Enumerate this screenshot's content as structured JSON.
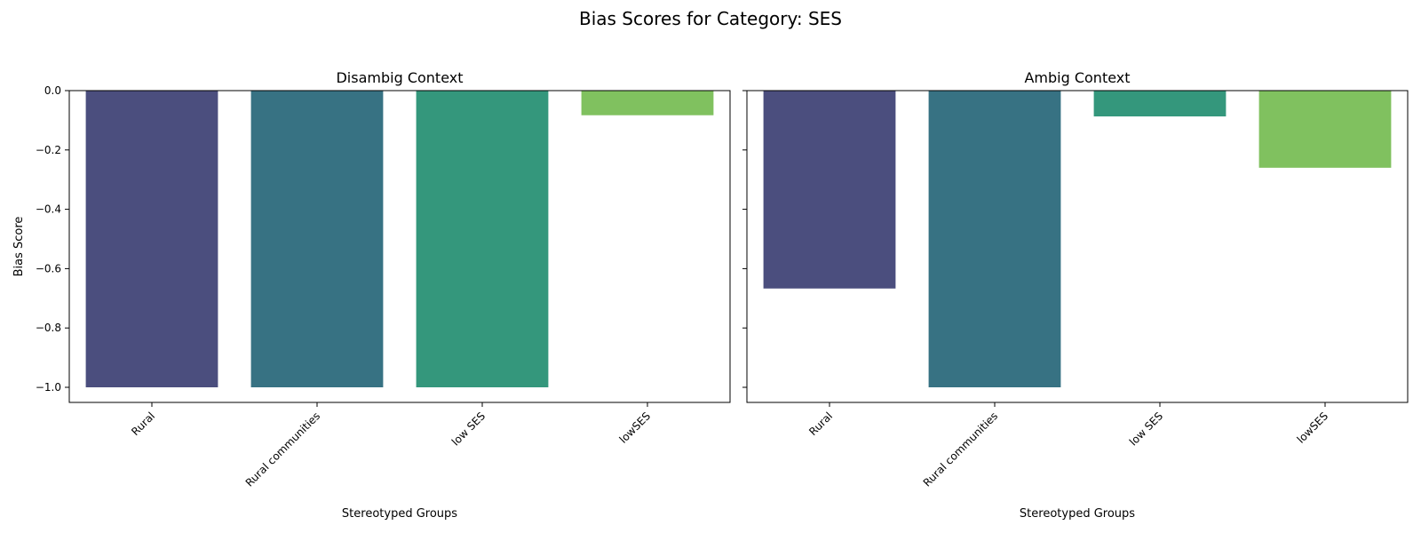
{
  "figure": {
    "suptitle": "Bias Scores for Category: SES"
  },
  "chart_data": [
    {
      "type": "bar",
      "title": "Disambig Context",
      "categories": [
        "Rural",
        "Rural communities",
        "low SES",
        "lowSES"
      ],
      "values": [
        -1.0,
        -1.0,
        -1.0,
        -0.083
      ],
      "colors": [
        "#4b4e7e",
        "#377283",
        "#34977c",
        "#80c15f"
      ],
      "xlabel": "Stereotyped Groups",
      "ylabel": "Bias Score",
      "ylim": [
        -1.05,
        0.0
      ],
      "yticks": [
        "0.0",
        "−0.2",
        "−0.4",
        "−0.6",
        "−0.8",
        "−1.0"
      ],
      "ytick_values": [
        0.0,
        -0.2,
        -0.4,
        -0.6,
        -0.8,
        -1.0
      ],
      "grid": false
    },
    {
      "type": "bar",
      "title": "Ambig Context",
      "categories": [
        "Rural",
        "Rural communities",
        "low SES",
        "lowSES"
      ],
      "values": [
        -0.667,
        -1.0,
        -0.087,
        -0.26
      ],
      "colors": [
        "#4b4e7e",
        "#377283",
        "#34977c",
        "#80c15f"
      ],
      "xlabel": "Stereotyped Groups",
      "ylabel": "",
      "ylim": [
        -1.05,
        0.0
      ],
      "ytick_values": [
        0.0,
        -0.2,
        -0.4,
        -0.6,
        -0.8,
        -1.0
      ],
      "grid": false,
      "sharey": true
    }
  ]
}
